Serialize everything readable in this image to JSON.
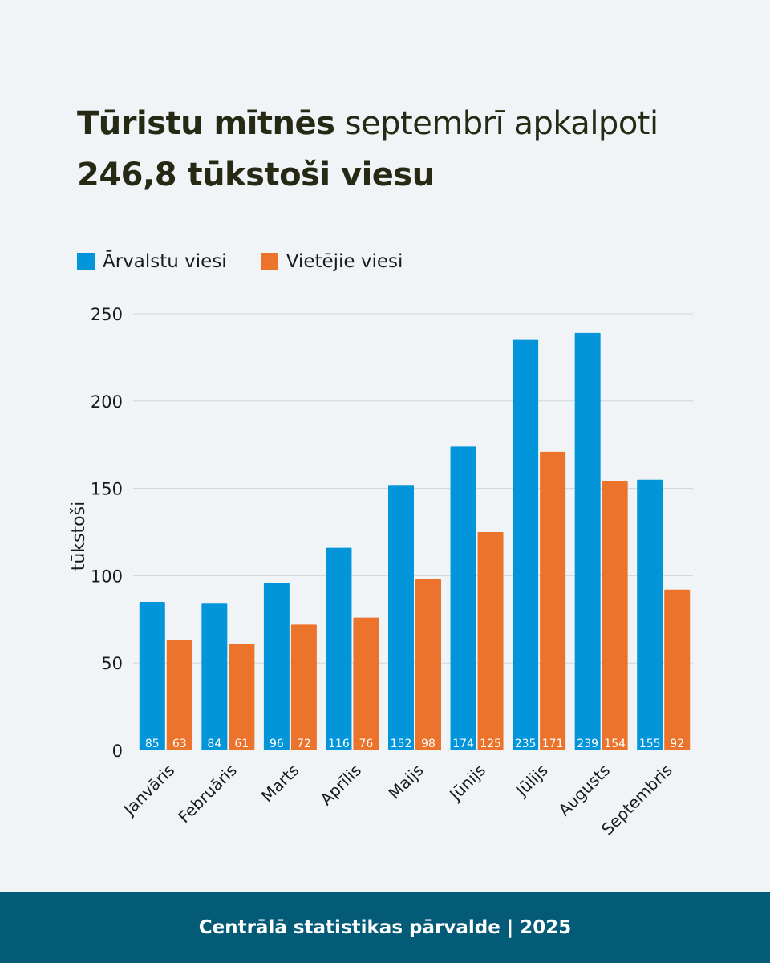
{
  "header": {
    "title_bold_1": "Tūristu mītnēs",
    "title_regular": " septembrī apkalpoti",
    "title_bold_2": "246,8 tūkstoši viesu"
  },
  "footer": {
    "text": "Centrālā statistikas pārvalde | 2025"
  },
  "colors": {
    "foreign": "#0395d9",
    "local": "#ec732b",
    "grid": "#cfd6da",
    "background": "#f0f4f6",
    "footer": "#035b77"
  },
  "chart_data": {
    "type": "bar",
    "categories": [
      "Janvāris",
      "Februāris",
      "Marts",
      "Aprīlis",
      "Maijs",
      "Jūnijs",
      "Jūlijs",
      "Augusts",
      "Septembris"
    ],
    "series": [
      {
        "name": "Ārvalstu viesi",
        "values": [
          85,
          84,
          96,
          116,
          152,
          174,
          235,
          239,
          155
        ]
      },
      {
        "name": "Vietējie viesi",
        "values": [
          63,
          61,
          72,
          76,
          98,
          125,
          171,
          154,
          92
        ]
      }
    ],
    "ylabel": "tūkstoši",
    "xlabel": "",
    "ylim": [
      0,
      250
    ],
    "yticks": [
      0,
      50,
      100,
      150,
      200,
      250
    ],
    "grid": true,
    "legend": "top-left",
    "data_labels": "inside-bottom"
  }
}
